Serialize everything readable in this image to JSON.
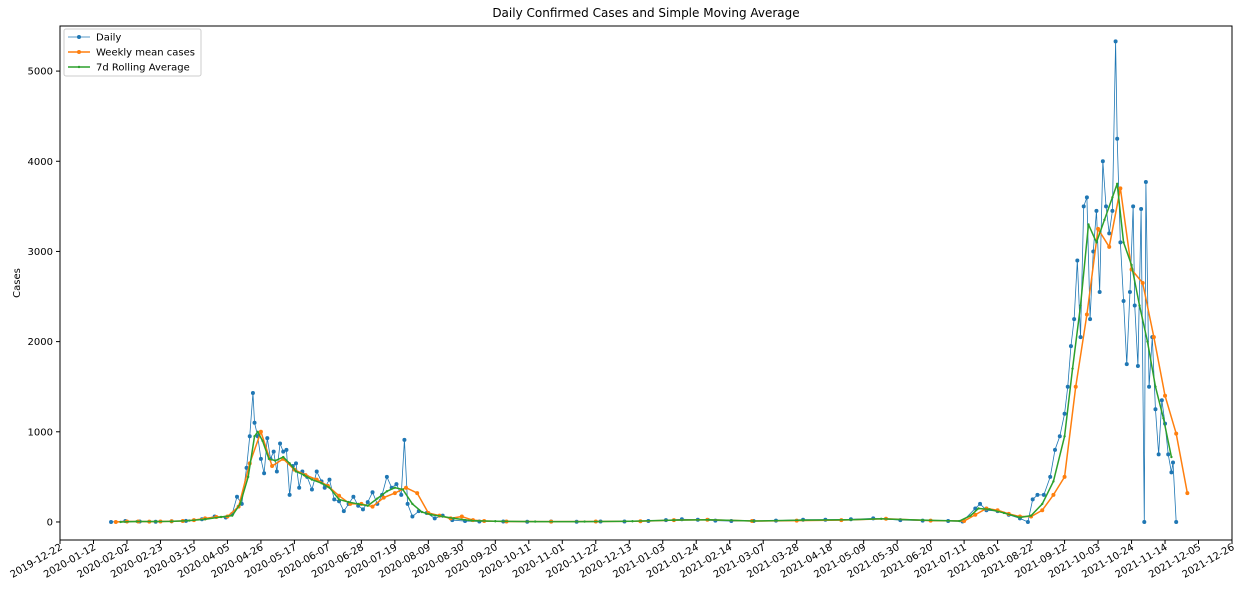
{
  "chart_data": {
    "type": "line",
    "title": "Daily Confirmed Cases and Simple Moving Average",
    "xlabel": "",
    "ylabel": "Cases",
    "x_type": "date",
    "xlim": [
      "2019-12-22",
      "2021-12-26"
    ],
    "ylim": [
      -200,
      5500
    ],
    "y_ticks": [
      0,
      1000,
      2000,
      3000,
      4000,
      5000
    ],
    "x_ticks": [
      "2019-12-22",
      "2020-01-12",
      "2020-02-02",
      "2020-02-23",
      "2020-03-15",
      "2020-04-05",
      "2020-04-26",
      "2020-05-17",
      "2020-06-07",
      "2020-06-28",
      "2020-07-19",
      "2020-08-09",
      "2020-08-30",
      "2020-09-20",
      "2020-10-11",
      "2020-11-01",
      "2020-11-22",
      "2020-12-13",
      "2021-01-03",
      "2021-01-24",
      "2021-02-14",
      "2021-03-07",
      "2021-03-28",
      "2021-04-18",
      "2021-05-09",
      "2021-05-30",
      "2021-06-20",
      "2021-07-11",
      "2021-08-01",
      "2021-08-22",
      "2021-09-12",
      "2021-10-03",
      "2021-10-24",
      "2021-11-14",
      "2021-12-05",
      "2021-12-26"
    ],
    "grid": false,
    "legend_position": "top-left",
    "series": [
      {
        "name": "Daily",
        "color": "#1f77b4",
        "marker": "circle",
        "points": [
          [
            "2020-01-23",
            0
          ],
          [
            "2020-02-01",
            10
          ],
          [
            "2020-02-10",
            5
          ],
          [
            "2020-02-20",
            3
          ],
          [
            "2020-03-01",
            8
          ],
          [
            "2020-03-10",
            12
          ],
          [
            "2020-03-20",
            30
          ],
          [
            "2020-03-28",
            60
          ],
          [
            "2020-04-04",
            50
          ],
          [
            "2020-04-08",
            90
          ],
          [
            "2020-04-11",
            280
          ],
          [
            "2020-04-14",
            200
          ],
          [
            "2020-04-17",
            600
          ],
          [
            "2020-04-19",
            950
          ],
          [
            "2020-04-21",
            1430
          ],
          [
            "2020-04-22",
            1100
          ],
          [
            "2020-04-24",
            950
          ],
          [
            "2020-04-26",
            700
          ],
          [
            "2020-04-28",
            540
          ],
          [
            "2020-04-30",
            930
          ],
          [
            "2020-05-02",
            700
          ],
          [
            "2020-05-04",
            780
          ],
          [
            "2020-05-06",
            560
          ],
          [
            "2020-05-08",
            870
          ],
          [
            "2020-05-10",
            780
          ],
          [
            "2020-05-12",
            800
          ],
          [
            "2020-05-14",
            300
          ],
          [
            "2020-05-16",
            620
          ],
          [
            "2020-05-18",
            650
          ],
          [
            "2020-05-20",
            380
          ],
          [
            "2020-05-22",
            560
          ],
          [
            "2020-05-25",
            500
          ],
          [
            "2020-05-28",
            360
          ],
          [
            "2020-05-31",
            560
          ],
          [
            "2020-06-03",
            450
          ],
          [
            "2020-06-05",
            380
          ],
          [
            "2020-06-08",
            470
          ],
          [
            "2020-06-11",
            250
          ],
          [
            "2020-06-14",
            230
          ],
          [
            "2020-06-17",
            120
          ],
          [
            "2020-06-20",
            200
          ],
          [
            "2020-06-23",
            280
          ],
          [
            "2020-06-26",
            180
          ],
          [
            "2020-06-29",
            140
          ],
          [
            "2020-07-02",
            220
          ],
          [
            "2020-07-05",
            330
          ],
          [
            "2020-07-08",
            200
          ],
          [
            "2020-07-11",
            300
          ],
          [
            "2020-07-14",
            500
          ],
          [
            "2020-07-17",
            380
          ],
          [
            "2020-07-20",
            420
          ],
          [
            "2020-07-23",
            300
          ],
          [
            "2020-07-25",
            910
          ],
          [
            "2020-07-27",
            200
          ],
          [
            "2020-07-30",
            60
          ],
          [
            "2020-08-03",
            120
          ],
          [
            "2020-08-08",
            100
          ],
          [
            "2020-08-13",
            40
          ],
          [
            "2020-08-18",
            70
          ],
          [
            "2020-08-24",
            20
          ],
          [
            "2020-09-01",
            10
          ],
          [
            "2020-09-10",
            5
          ],
          [
            "2020-09-25",
            5
          ],
          [
            "2020-10-10",
            3
          ],
          [
            "2020-10-25",
            5
          ],
          [
            "2020-11-10",
            3
          ],
          [
            "2020-11-25",
            5
          ],
          [
            "2020-12-10",
            5
          ],
          [
            "2020-12-25",
            10
          ],
          [
            "2021-01-05",
            20
          ],
          [
            "2021-01-15",
            30
          ],
          [
            "2021-01-25",
            25
          ],
          [
            "2021-02-05",
            15
          ],
          [
            "2021-02-15",
            10
          ],
          [
            "2021-03-01",
            10
          ],
          [
            "2021-03-15",
            15
          ],
          [
            "2021-04-01",
            25
          ],
          [
            "2021-04-15",
            25
          ],
          [
            "2021-05-01",
            30
          ],
          [
            "2021-05-15",
            40
          ],
          [
            "2021-06-01",
            20
          ],
          [
            "2021-06-15",
            15
          ],
          [
            "2021-07-01",
            10
          ],
          [
            "2021-07-10",
            5
          ],
          [
            "2021-07-18",
            150
          ],
          [
            "2021-07-21",
            200
          ],
          [
            "2021-07-25",
            130
          ],
          [
            "2021-08-01",
            120
          ],
          [
            "2021-08-08",
            80
          ],
          [
            "2021-08-15",
            40
          ],
          [
            "2021-08-20",
            0
          ],
          [
            "2021-08-23",
            250
          ],
          [
            "2021-08-26",
            300
          ],
          [
            "2021-08-30",
            300
          ],
          [
            "2021-09-03",
            500
          ],
          [
            "2021-09-06",
            800
          ],
          [
            "2021-09-09",
            950
          ],
          [
            "2021-09-12",
            1200
          ],
          [
            "2021-09-14",
            1500
          ],
          [
            "2021-09-16",
            1950
          ],
          [
            "2021-09-18",
            2250
          ],
          [
            "2021-09-20",
            2900
          ],
          [
            "2021-09-22",
            2050
          ],
          [
            "2021-09-24",
            3500
          ],
          [
            "2021-09-26",
            3600
          ],
          [
            "2021-09-28",
            2250
          ],
          [
            "2021-09-30",
            3000
          ],
          [
            "2021-10-02",
            3450
          ],
          [
            "2021-10-04",
            2550
          ],
          [
            "2021-10-06",
            4000
          ],
          [
            "2021-10-08",
            3500
          ],
          [
            "2021-10-10",
            3200
          ],
          [
            "2021-10-12",
            3450
          ],
          [
            "2021-10-14",
            5330
          ],
          [
            "2021-10-15",
            4250
          ],
          [
            "2021-10-17",
            3100
          ],
          [
            "2021-10-19",
            2450
          ],
          [
            "2021-10-21",
            1750
          ],
          [
            "2021-10-23",
            2550
          ],
          [
            "2021-10-25",
            3500
          ],
          [
            "2021-10-26",
            2400
          ],
          [
            "2021-10-28",
            1730
          ],
          [
            "2021-10-30",
            3470
          ],
          [
            "2021-11-01",
            0
          ],
          [
            "2021-11-02",
            3770
          ],
          [
            "2021-11-04",
            1500
          ],
          [
            "2021-11-06",
            2050
          ],
          [
            "2021-11-08",
            1250
          ],
          [
            "2021-11-10",
            750
          ],
          [
            "2021-11-12",
            1350
          ],
          [
            "2021-11-14",
            1090
          ],
          [
            "2021-11-16",
            750
          ],
          [
            "2021-11-18",
            550
          ],
          [
            "2021-11-19",
            660
          ],
          [
            "2021-11-21",
            0
          ]
        ]
      },
      {
        "name": "Weekly mean cases",
        "color": "#ff7f0e",
        "marker": "circle",
        "points": [
          [
            "2020-01-26",
            0
          ],
          [
            "2020-02-02",
            5
          ],
          [
            "2020-02-09",
            5
          ],
          [
            "2020-02-16",
            4
          ],
          [
            "2020-02-23",
            5
          ],
          [
            "2020-03-01",
            8
          ],
          [
            "2020-03-08",
            10
          ],
          [
            "2020-03-15",
            20
          ],
          [
            "2020-03-22",
            40
          ],
          [
            "2020-03-29",
            55
          ],
          [
            "2020-04-05",
            60
          ],
          [
            "2020-04-12",
            170
          ],
          [
            "2020-04-19",
            650
          ],
          [
            "2020-04-26",
            1000
          ],
          [
            "2020-05-03",
            620
          ],
          [
            "2020-05-10",
            700
          ],
          [
            "2020-05-17",
            580
          ],
          [
            "2020-05-24",
            520
          ],
          [
            "2020-05-31",
            470
          ],
          [
            "2020-06-07",
            400
          ],
          [
            "2020-06-14",
            290
          ],
          [
            "2020-06-21",
            200
          ],
          [
            "2020-06-28",
            200
          ],
          [
            "2020-07-05",
            170
          ],
          [
            "2020-07-12",
            270
          ],
          [
            "2020-07-19",
            320
          ],
          [
            "2020-07-26",
            380
          ],
          [
            "2020-08-02",
            320
          ],
          [
            "2020-08-09",
            100
          ],
          [
            "2020-08-16",
            70
          ],
          [
            "2020-08-23",
            40
          ],
          [
            "2020-08-30",
            60
          ],
          [
            "2020-09-06",
            20
          ],
          [
            "2020-09-13",
            10
          ],
          [
            "2020-09-27",
            5
          ],
          [
            "2020-10-25",
            4
          ],
          [
            "2020-11-22",
            5
          ],
          [
            "2020-12-20",
            8
          ],
          [
            "2021-01-10",
            20
          ],
          [
            "2021-01-31",
            25
          ],
          [
            "2021-02-28",
            10
          ],
          [
            "2021-03-28",
            15
          ],
          [
            "2021-04-25",
            20
          ],
          [
            "2021-05-23",
            35
          ],
          [
            "2021-06-20",
            15
          ],
          [
            "2021-07-11",
            10
          ],
          [
            "2021-07-18",
            80
          ],
          [
            "2021-07-25",
            150
          ],
          [
            "2021-08-01",
            130
          ],
          [
            "2021-08-08",
            90
          ],
          [
            "2021-08-15",
            60
          ],
          [
            "2021-08-22",
            60
          ],
          [
            "2021-08-29",
            130
          ],
          [
            "2021-09-05",
            300
          ],
          [
            "2021-09-12",
            500
          ],
          [
            "2021-09-19",
            1500
          ],
          [
            "2021-09-26",
            2300
          ],
          [
            "2021-10-03",
            3250
          ],
          [
            "2021-10-10",
            3050
          ],
          [
            "2021-10-17",
            3700
          ],
          [
            "2021-10-24",
            2800
          ],
          [
            "2021-10-31",
            2650
          ],
          [
            "2021-11-07",
            2050
          ],
          [
            "2021-11-14",
            1400
          ],
          [
            "2021-11-21",
            980
          ],
          [
            "2021-11-28",
            320
          ]
        ]
      },
      {
        "name": "7d Rolling Average",
        "color": "#2ca02c",
        "marker": "point",
        "points": [
          [
            "2020-01-29",
            0
          ],
          [
            "2020-02-08",
            5
          ],
          [
            "2020-02-20",
            5
          ],
          [
            "2020-03-01",
            6
          ],
          [
            "2020-03-12",
            15
          ],
          [
            "2020-03-22",
            30
          ],
          [
            "2020-04-01",
            55
          ],
          [
            "2020-04-08",
            70
          ],
          [
            "2020-04-13",
            200
          ],
          [
            "2020-04-18",
            500
          ],
          [
            "2020-04-22",
            950
          ],
          [
            "2020-04-24",
            1000
          ],
          [
            "2020-04-27",
            900
          ],
          [
            "2020-05-01",
            700
          ],
          [
            "2020-05-05",
            680
          ],
          [
            "2020-05-10",
            720
          ],
          [
            "2020-05-14",
            650
          ],
          [
            "2020-05-18",
            560
          ],
          [
            "2020-05-23",
            520
          ],
          [
            "2020-05-28",
            470
          ],
          [
            "2020-06-03",
            430
          ],
          [
            "2020-06-08",
            380
          ],
          [
            "2020-06-14",
            250
          ],
          [
            "2020-06-20",
            220
          ],
          [
            "2020-06-26",
            200
          ],
          [
            "2020-07-02",
            180
          ],
          [
            "2020-07-08",
            260
          ],
          [
            "2020-07-14",
            340
          ],
          [
            "2020-07-19",
            380
          ],
          [
            "2020-07-24",
            360
          ],
          [
            "2020-07-30",
            200
          ],
          [
            "2020-08-05",
            110
          ],
          [
            "2020-08-11",
            80
          ],
          [
            "2020-08-18",
            60
          ],
          [
            "2020-08-25",
            40
          ],
          [
            "2020-09-05",
            15
          ],
          [
            "2020-09-20",
            8
          ],
          [
            "2020-10-15",
            4
          ],
          [
            "2020-11-15",
            4
          ],
          [
            "2020-12-15",
            8
          ],
          [
            "2021-01-10",
            20
          ],
          [
            "2021-02-01",
            25
          ],
          [
            "2021-03-01",
            10
          ],
          [
            "2021-04-01",
            20
          ],
          [
            "2021-05-01",
            25
          ],
          [
            "2021-05-20",
            35
          ],
          [
            "2021-06-15",
            20
          ],
          [
            "2021-07-08",
            10
          ],
          [
            "2021-07-15",
            70
          ],
          [
            "2021-07-20",
            150
          ],
          [
            "2021-07-27",
            140
          ],
          [
            "2021-08-05",
            100
          ],
          [
            "2021-08-15",
            50
          ],
          [
            "2021-08-22",
            70
          ],
          [
            "2021-08-29",
            200
          ],
          [
            "2021-09-05",
            450
          ],
          [
            "2021-09-12",
            950
          ],
          [
            "2021-09-17",
            1700
          ],
          [
            "2021-09-22",
            2400
          ],
          [
            "2021-09-27",
            3300
          ],
          [
            "2021-10-02",
            3100
          ],
          [
            "2021-10-07",
            3350
          ],
          [
            "2021-10-12",
            3600
          ],
          [
            "2021-10-15",
            3750
          ],
          [
            "2021-10-19",
            3100
          ],
          [
            "2021-10-24",
            2850
          ],
          [
            "2021-10-29",
            2400
          ],
          [
            "2021-11-03",
            2000
          ],
          [
            "2021-11-08",
            1500
          ],
          [
            "2021-11-13",
            1150
          ],
          [
            "2021-11-18",
            720
          ]
        ]
      }
    ]
  }
}
